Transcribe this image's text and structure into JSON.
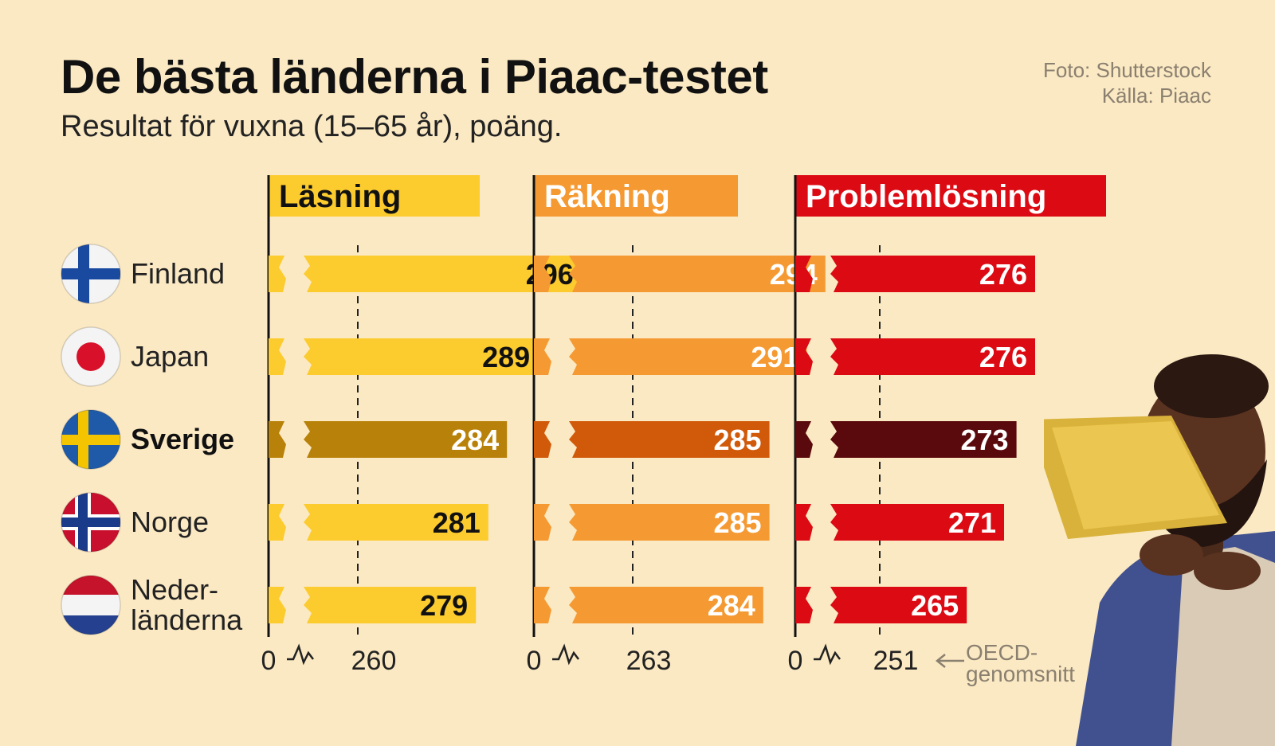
{
  "header": {
    "title": "De bästa länderna i Piaac-testet",
    "subtitle": "Resultat för vuxna (15–65 år), poäng.",
    "photo_credit": "Foto: Shutterstock",
    "source": "Källa: Piaac"
  },
  "oecd_note": {
    "line1": "OECD-",
    "line2": "genomsnitt"
  },
  "colors": {
    "background": "#fbe9c3",
    "lasning": "#fccb2e",
    "lasning_highlight": "#b88109",
    "rakning": "#f59a32",
    "rakning_highlight": "#d15a0a",
    "problem": "#dc0a13",
    "problem_highlight": "#5a0a0c"
  },
  "chart_data": {
    "type": "bar",
    "orientation": "horizontal",
    "broken_axis": true,
    "categories": [
      "Finland",
      "Japan",
      "Sverige",
      "Norge",
      "Neder-länderna"
    ],
    "category_lines": [
      [
        "Finland"
      ],
      [
        "Japan"
      ],
      [
        "Sverige"
      ],
      [
        "Norge"
      ],
      [
        "Neder-",
        "länderna"
      ]
    ],
    "highlighted_category": "Sverige",
    "flags": [
      "finland-flag",
      "japan-flag",
      "sweden-flag",
      "norway-flag",
      "netherlands-flag"
    ],
    "series": [
      {
        "name": "Läsning",
        "values": [
          296,
          289,
          284,
          281,
          279
        ],
        "oecd_average": 260,
        "axis_zero": "0"
      },
      {
        "name": "Räkning",
        "values": [
          294,
          291,
          285,
          285,
          284
        ],
        "oecd_average": 263,
        "axis_zero": "0"
      },
      {
        "name": "Problemlösning",
        "values": [
          276,
          276,
          273,
          271,
          265
        ],
        "oecd_average": 251,
        "axis_zero": "0"
      }
    ]
  }
}
